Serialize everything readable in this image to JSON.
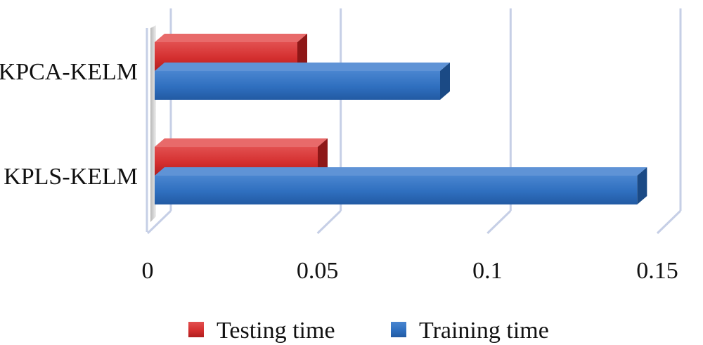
{
  "chart_data": {
    "type": "bar",
    "orientation": "horizontal",
    "three_d": true,
    "title": "",
    "xlabel": "",
    "ylabel": "",
    "categories": [
      "KPCA-KELM",
      "KPLS-KELM"
    ],
    "series": [
      {
        "name": "Testing time",
        "values": [
          0.042,
          0.048
        ],
        "color": "#d42f2f"
      },
      {
        "name": "Training time",
        "values": [
          0.084,
          0.142
        ],
        "color": "#2f6fbf"
      }
    ],
    "xlim": [
      0,
      0.15
    ],
    "xticks": [
      {
        "value": 0,
        "label": "0"
      },
      {
        "value": 0.05,
        "label": "0.05"
      },
      {
        "value": 0.1,
        "label": "0.1"
      },
      {
        "value": 0.15,
        "label": "0.15"
      }
    ],
    "grid": true,
    "legend_position": "bottom"
  }
}
